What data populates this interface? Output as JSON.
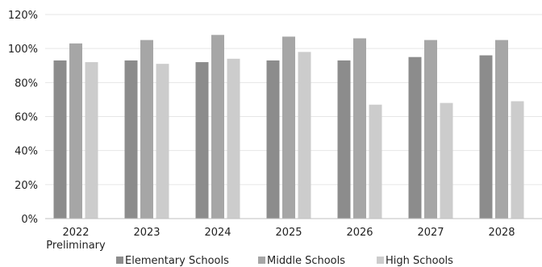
{
  "chart_data": {
    "type": "bar",
    "categories": [
      [
        "2022",
        "Preliminary"
      ],
      [
        "2023"
      ],
      [
        "2024"
      ],
      [
        "2025"
      ],
      [
        "2026"
      ],
      [
        "2027"
      ],
      [
        "2028"
      ]
    ],
    "series": [
      {
        "name": "Elementary Schools",
        "color": "#8c8c8c",
        "values": [
          93,
          93,
          92,
          93,
          93,
          95,
          96
        ]
      },
      {
        "name": "Middle Schools",
        "color": "#a6a6a6",
        "values": [
          103,
          105,
          108,
          107,
          106,
          105,
          105
        ]
      },
      {
        "name": "High Schools",
        "color": "#cccccc",
        "values": [
          92,
          91,
          94,
          98,
          67,
          68,
          69
        ]
      }
    ],
    "yticks": [
      "0%",
      "20%",
      "40%",
      "60%",
      "80%",
      "100%",
      "120%"
    ],
    "ylim": [
      0,
      120
    ],
    "grid": true,
    "legend_position": "bottom",
    "axis_color": "#bfbfbf",
    "grid_color": "#e6e6e6"
  }
}
